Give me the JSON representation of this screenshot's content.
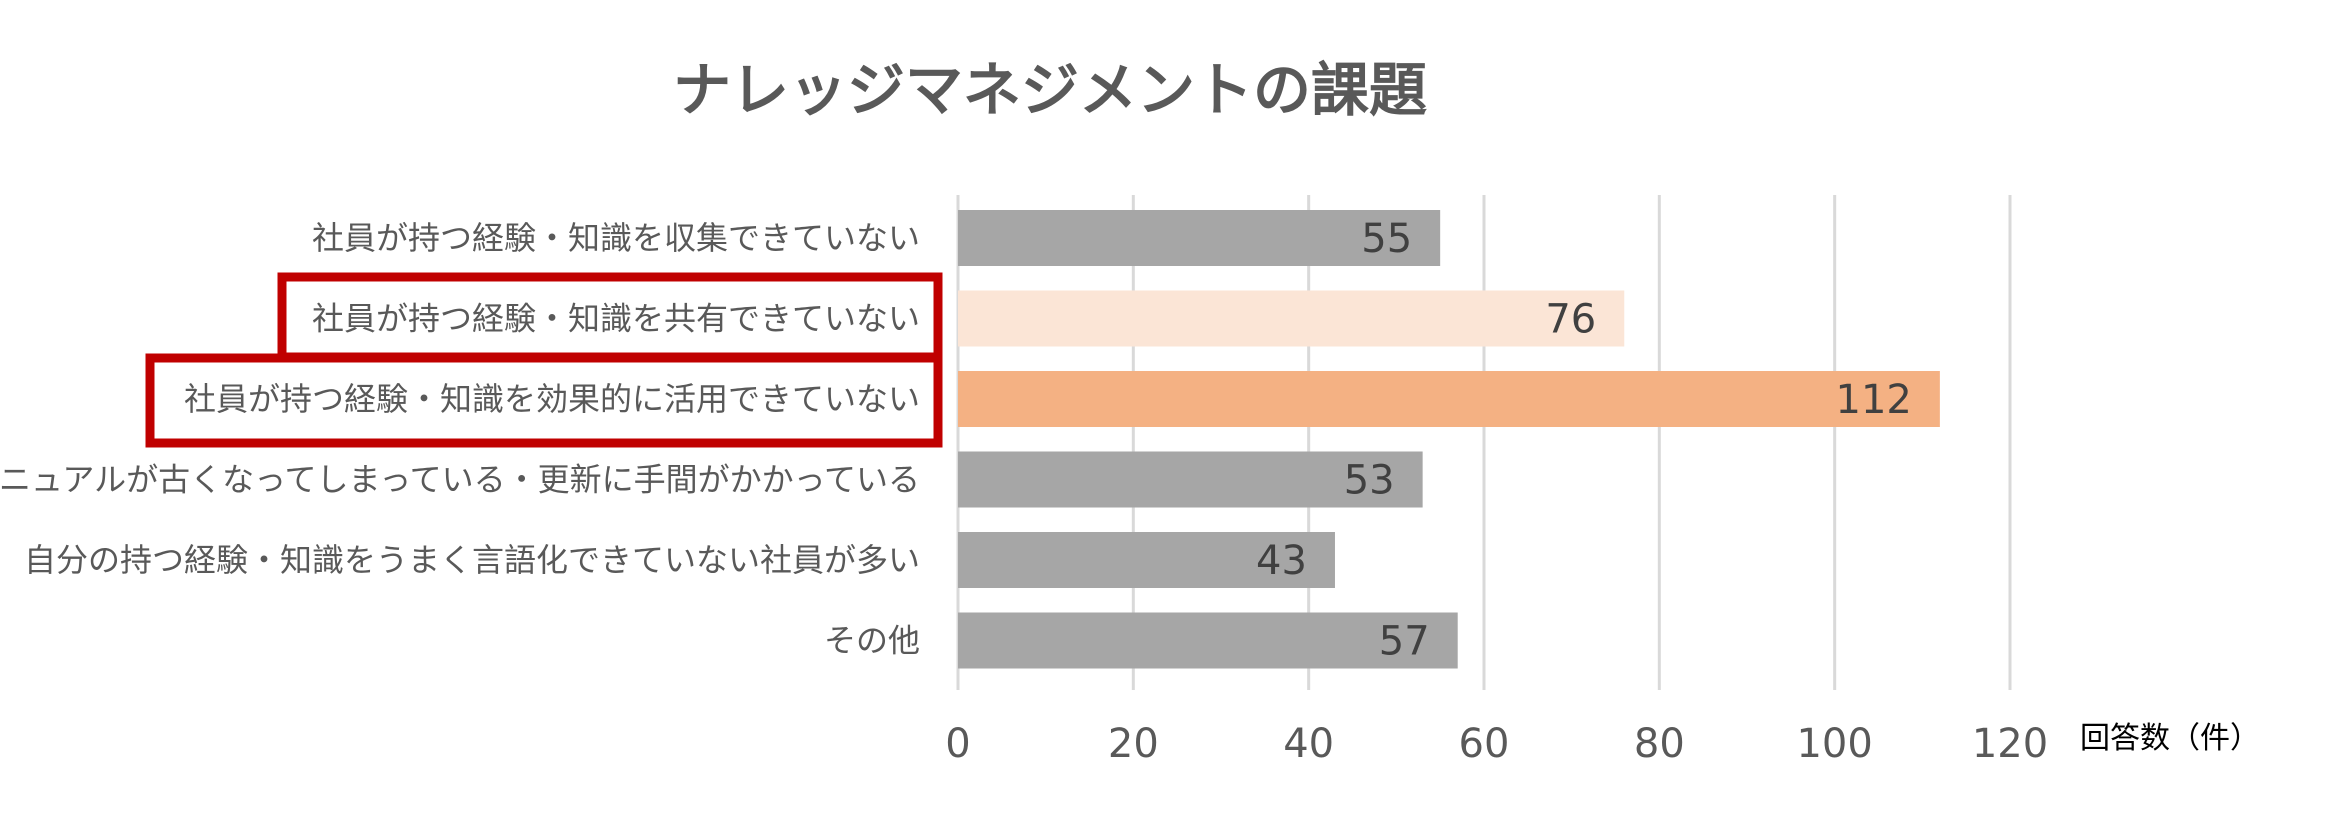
{
  "chart_data": {
    "type": "bar",
    "orientation": "horizontal",
    "title": "ナレッジマネジメントの課題",
    "xlabel": "回答数（件）",
    "ylabel": "",
    "xlim": [
      0,
      120
    ],
    "xticks": [
      0,
      20,
      40,
      60,
      80,
      100,
      120
    ],
    "grid": true,
    "categories": [
      "社員が持つ経験・知識を収集できていない",
      "社員が持つ経験・知識を共有できていない",
      "社員が持つ経験・知識を効果的に活用できていない",
      "マニュアルが古くなってしまっている・更新に手間がかかっている",
      "自分の持つ経験・知識をうまく言語化できていない社員が多い",
      "その他"
    ],
    "values": [
      55,
      76,
      112,
      53,
      43,
      57
    ],
    "bar_colors": [
      "#a6a6a6",
      "#fbe5d6",
      "#f4b183",
      "#a6a6a6",
      "#a6a6a6",
      "#a6a6a6"
    ],
    "highlighted_categories": [
      1,
      2
    ],
    "highlight_color": "#c00000"
  }
}
